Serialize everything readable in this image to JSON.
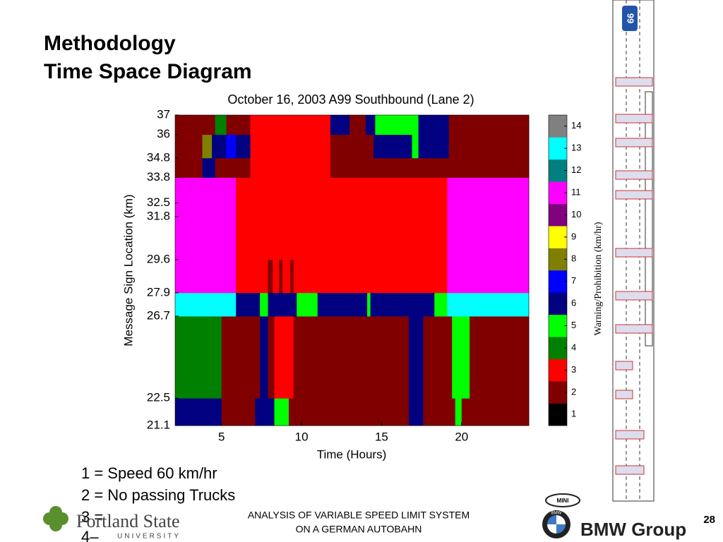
{
  "slide": {
    "title": [
      "Methodology",
      "Time Space Diagram"
    ],
    "notes": [
      "1 = Speed 60 km/hr",
      "2 = No passing Trucks",
      "3 =",
      "4–"
    ],
    "footer": [
      "ANALYSIS OF VARIABLE SPEED LIMIT SYSTEM",
      "ON A GERMAN AUTOBAHN"
    ],
    "page_number": "28",
    "logo_left": [
      "Portland State",
      "UNIVERSITY"
    ],
    "logo_right": [
      "MINI",
      "BMW",
      "BMW Group"
    ],
    "road_sign": "99"
  },
  "chart_data": {
    "type": "heatmap",
    "title": "October 16, 2003 A99 Southbound (Lane 2)",
    "xlabel": "Time (Hours)",
    "ylabel": "Message Sign Location (km)",
    "xlim": [
      2.1,
      24.2
    ],
    "xticks": [
      5,
      10,
      15,
      20
    ],
    "ylim": [
      21.1,
      37
    ],
    "yticks": [
      37,
      36,
      34.8,
      33.8,
      32.5,
      31.8,
      29.6,
      27.9,
      26.7,
      22.5,
      21.1
    ],
    "colorbar": {
      "label": "Warning/Prohibition (km/hr)",
      "levels": [
        1,
        2,
        3,
        4,
        5,
        6,
        7,
        8,
        9,
        10,
        11,
        12,
        13,
        14
      ],
      "colors": [
        "#000000",
        "#800000",
        "#ff0000",
        "#008000",
        "#00ff00",
        "#000080",
        "#0000ff",
        "#808000",
        "#ffff00",
        "#800080",
        "#ff00ff",
        "#008080",
        "#00ffff",
        "#808080"
      ]
    },
    "rows": [
      {
        "from": 21.1,
        "to": 22.5,
        "cells": [
          {
            "start": 2.1,
            "end": 5.0,
            "value": 6
          },
          {
            "start": 5.0,
            "end": 7.1,
            "value": 2
          },
          {
            "start": 7.1,
            "end": 8.3,
            "value": 6
          },
          {
            "start": 8.3,
            "end": 9.2,
            "value": 5
          },
          {
            "start": 9.2,
            "end": 16.7,
            "value": 2
          },
          {
            "start": 16.7,
            "end": 17.6,
            "value": 6
          },
          {
            "start": 17.6,
            "end": 19.6,
            "value": 2
          },
          {
            "start": 19.6,
            "end": 20.0,
            "value": 5
          },
          {
            "start": 20.0,
            "end": 24.2,
            "value": 2
          }
        ]
      },
      {
        "from": 22.5,
        "to": 26.7,
        "cells": [
          {
            "start": 2.1,
            "end": 5.0,
            "value": 4
          },
          {
            "start": 5.0,
            "end": 7.4,
            "value": 2
          },
          {
            "start": 7.4,
            "end": 7.9,
            "value": 6
          },
          {
            "start": 7.9,
            "end": 8.3,
            "value": 2
          },
          {
            "start": 8.3,
            "end": 9.5,
            "value": 3
          },
          {
            "start": 9.5,
            "end": 16.7,
            "value": 2
          },
          {
            "start": 16.7,
            "end": 17.6,
            "value": 6
          },
          {
            "start": 17.6,
            "end": 19.4,
            "value": 2
          },
          {
            "start": 19.4,
            "end": 20.5,
            "value": 5
          },
          {
            "start": 20.5,
            "end": 24.2,
            "value": 2
          }
        ]
      },
      {
        "from": 26.7,
        "to": 27.9,
        "cells": [
          {
            "start": 2.1,
            "end": 5.9,
            "value": 13
          },
          {
            "start": 5.9,
            "end": 7.4,
            "value": 6
          },
          {
            "start": 7.4,
            "end": 7.9,
            "value": 5
          },
          {
            "start": 7.9,
            "end": 9.7,
            "value": 6
          },
          {
            "start": 9.7,
            "end": 11.0,
            "value": 5
          },
          {
            "start": 11.0,
            "end": 14.1,
            "value": 6
          },
          {
            "start": 14.1,
            "end": 14.3,
            "value": 5
          },
          {
            "start": 14.3,
            "end": 18.3,
            "value": 6
          },
          {
            "start": 18.3,
            "end": 19.1,
            "value": 5
          },
          {
            "start": 19.1,
            "end": 24.2,
            "value": 13
          }
        ]
      },
      {
        "from": 27.9,
        "to": 29.6,
        "cells": [
          {
            "start": 2.1,
            "end": 5.9,
            "value": 11
          },
          {
            "start": 5.9,
            "end": 7.9,
            "value": 3
          },
          {
            "start": 7.9,
            "end": 8.2,
            "value": 2
          },
          {
            "start": 8.2,
            "end": 8.6,
            "value": 3
          },
          {
            "start": 8.6,
            "end": 8.8,
            "value": 2
          },
          {
            "start": 8.8,
            "end": 9.3,
            "value": 3
          },
          {
            "start": 9.3,
            "end": 9.5,
            "value": 2
          },
          {
            "start": 9.5,
            "end": 19.1,
            "value": 3
          },
          {
            "start": 19.1,
            "end": 24.2,
            "value": 11
          }
        ]
      },
      {
        "from": 29.6,
        "to": 33.8,
        "cells": [
          {
            "start": 2.1,
            "end": 5.9,
            "value": 11
          },
          {
            "start": 5.9,
            "end": 19.1,
            "value": 3
          },
          {
            "start": 19.1,
            "end": 24.2,
            "value": 11
          }
        ]
      },
      {
        "from": 33.8,
        "to": 34.8,
        "cells": [
          {
            "start": 2.1,
            "end": 3.8,
            "value": 2
          },
          {
            "start": 3.8,
            "end": 4.6,
            "value": 6
          },
          {
            "start": 4.6,
            "end": 6.8,
            "value": 2
          },
          {
            "start": 6.8,
            "end": 11.8,
            "value": 3
          },
          {
            "start": 11.8,
            "end": 24.2,
            "value": 2
          }
        ]
      },
      {
        "from": 34.8,
        "to": 36,
        "cells": [
          {
            "start": 2.1,
            "end": 3.8,
            "value": 2
          },
          {
            "start": 3.8,
            "end": 4.4,
            "value": 8
          },
          {
            "start": 4.4,
            "end": 5.3,
            "value": 6
          },
          {
            "start": 5.3,
            "end": 5.9,
            "value": 7
          },
          {
            "start": 5.9,
            "end": 6.8,
            "value": 6
          },
          {
            "start": 6.8,
            "end": 11.8,
            "value": 3
          },
          {
            "start": 11.8,
            "end": 14.5,
            "value": 2
          },
          {
            "start": 14.5,
            "end": 16.9,
            "value": 6
          },
          {
            "start": 16.9,
            "end": 17.3,
            "value": 5
          },
          {
            "start": 17.3,
            "end": 19.2,
            "value": 6
          },
          {
            "start": 19.2,
            "end": 24.2,
            "value": 2
          }
        ]
      },
      {
        "from": 36,
        "to": 37,
        "cells": [
          {
            "start": 2.1,
            "end": 4.6,
            "value": 2
          },
          {
            "start": 4.6,
            "end": 5.3,
            "value": 4
          },
          {
            "start": 5.3,
            "end": 6.8,
            "value": 2
          },
          {
            "start": 6.8,
            "end": 11.8,
            "value": 3
          },
          {
            "start": 11.8,
            "end": 13.0,
            "value": 6
          },
          {
            "start": 13.0,
            "end": 14.0,
            "value": 2
          },
          {
            "start": 14.0,
            "end": 14.6,
            "value": 6
          },
          {
            "start": 14.6,
            "end": 17.3,
            "value": 5
          },
          {
            "start": 17.3,
            "end": 19.2,
            "value": 6
          },
          {
            "start": 19.2,
            "end": 24.2,
            "value": 2
          }
        ]
      }
    ]
  }
}
